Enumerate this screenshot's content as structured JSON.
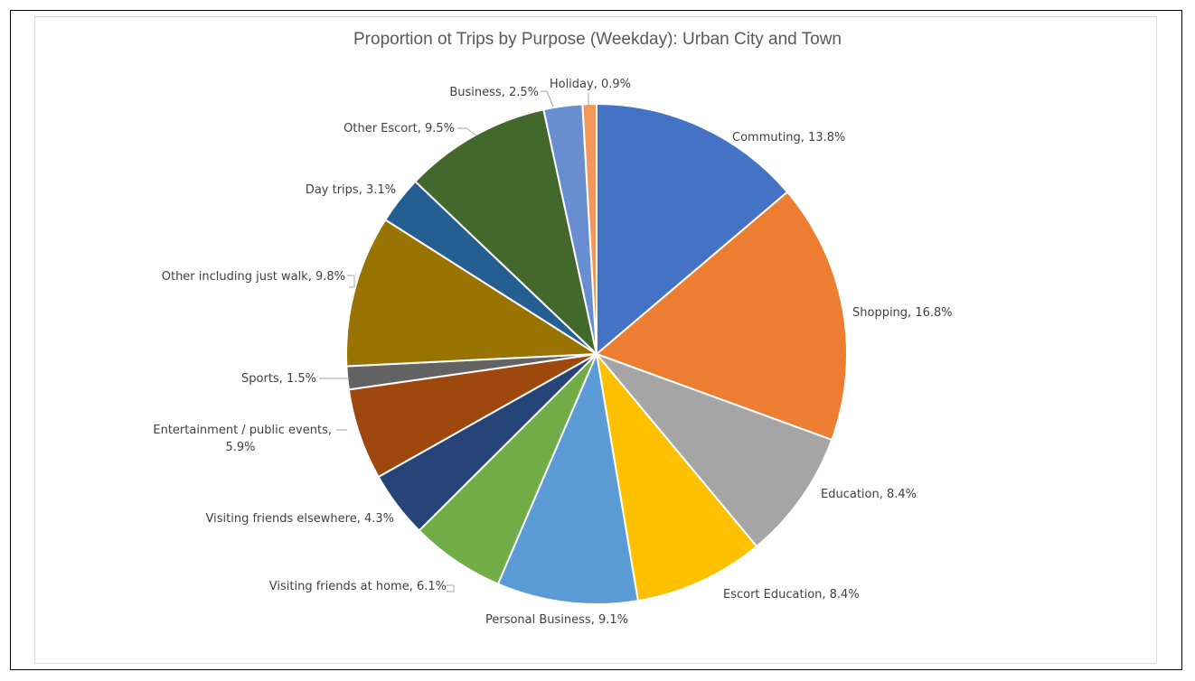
{
  "chart_data": {
    "type": "pie",
    "title": "Proportion ot Trips by Purpose (Weekday): Urban City and Town",
    "start_angle_deg": 0,
    "direction": "clockwise",
    "slices": [
      {
        "label": "Commuting",
        "value": 13.8,
        "display": "Commuting, 13.8%",
        "color": "#4472C4"
      },
      {
        "label": "Shopping",
        "value": 16.8,
        "display": "Shopping, 16.8%",
        "color": "#ED7D31"
      },
      {
        "label": "Education",
        "value": 8.4,
        "display": "Education, 8.4%",
        "color": "#A5A5A5"
      },
      {
        "label": "Escort Education",
        "value": 8.4,
        "display": "Escort Education, 8.4%",
        "color": "#FFC000"
      },
      {
        "label": "Personal Business",
        "value": 9.1,
        "display": "Personal Business, 9.1%",
        "color": "#5B9BD5"
      },
      {
        "label": "Visiting friends at home",
        "value": 6.1,
        "display": "Visiting friends at home, 6.1%",
        "color": "#70AD47"
      },
      {
        "label": "Visiting friends elsewhere",
        "value": 4.3,
        "display": "Visiting friends elsewhere, 4.3%",
        "color": "#264478"
      },
      {
        "label": "Entertainment / public events",
        "value": 5.9,
        "display": [
          "Entertainment / public events,",
          "5.9%"
        ],
        "color": "#9E480E"
      },
      {
        "label": "Sports",
        "value": 1.5,
        "display": "Sports, 1.5%",
        "color": "#636363"
      },
      {
        "label": "Other including just walk",
        "value": 9.8,
        "display": "Other including just walk, 9.8%",
        "color": "#997300"
      },
      {
        "label": "Day trips",
        "value": 3.1,
        "display": "Day trips, 3.1%",
        "color": "#255E91"
      },
      {
        "label": "Other Escort",
        "value": 9.5,
        "display": "Other Escort, 9.5%",
        "color": "#43682B"
      },
      {
        "label": "Business",
        "value": 2.5,
        "display": "Business, 2.5%",
        "color": "#698ED0"
      },
      {
        "label": "Holiday",
        "value": 0.9,
        "display": "Holiday, 0.9%",
        "color": "#F1975A"
      }
    ]
  }
}
